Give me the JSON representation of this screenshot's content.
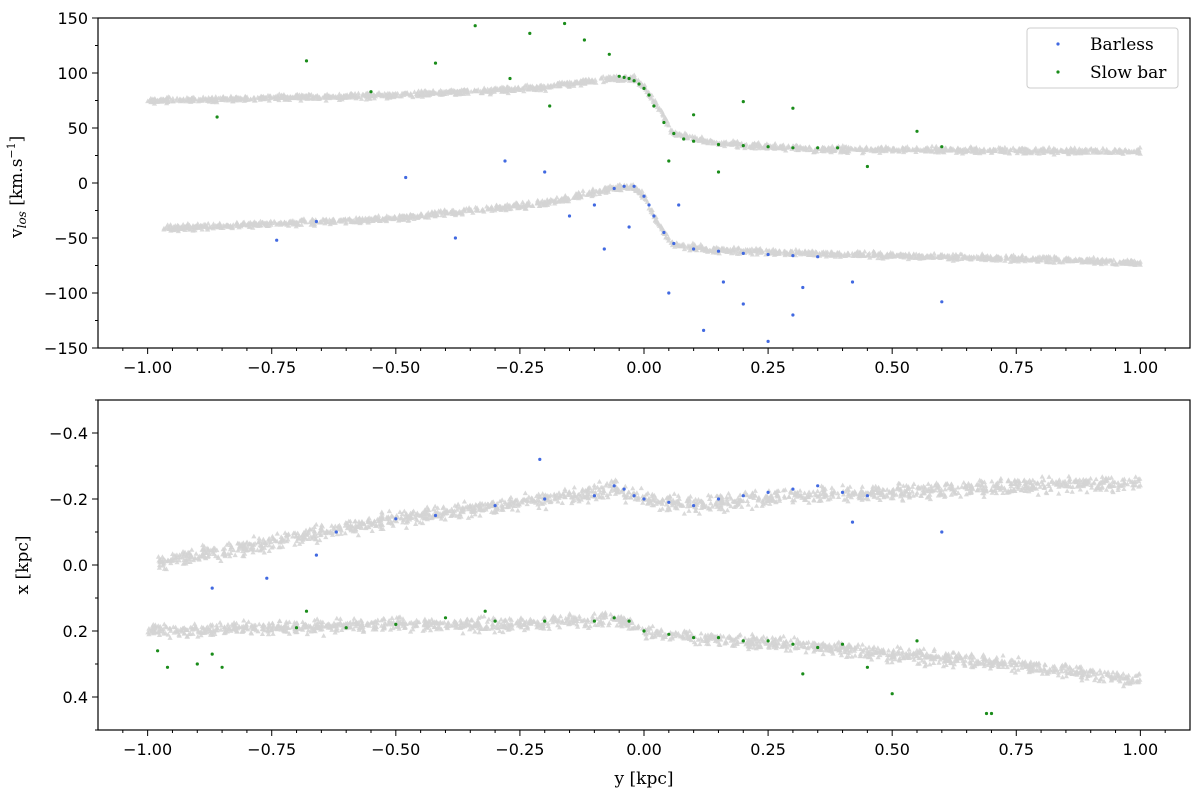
{
  "chart_data": [
    {
      "type": "scatter",
      "panel": "top",
      "xlim": [
        -1.1,
        1.1
      ],
      "ylim": [
        -150,
        150
      ],
      "xticks": [
        -1.0,
        -0.75,
        -0.5,
        -0.25,
        0.0,
        0.25,
        0.5,
        0.75,
        1.0
      ],
      "xtick_labels": [
        "−1.00",
        "−0.75",
        "−0.50",
        "−0.25",
        "0.00",
        "0.25",
        "0.50",
        "0.75",
        "1.00"
      ],
      "yticks": [
        -150,
        -100,
        -50,
        0,
        50,
        100,
        150
      ],
      "ytick_labels": [
        "−150",
        "−100",
        "−50",
        "0",
        "50",
        "100",
        "150"
      ],
      "ylabel": "v",
      "ylabel_sub": "los",
      "ylabel_unit": "[km.s",
      "ylabel_sup": "−1",
      "ylabel_close": "]",
      "legend_position": "top-right",
      "legend": [
        {
          "label": "Barless",
          "color": "#4169e1"
        },
        {
          "label": "Slow bar",
          "color": "#1a8c1a"
        }
      ],
      "series": [
        {
          "name": "Slow bar background (all stars)",
          "color": "#d3d3d3",
          "model": "rotation_curve",
          "points": [
            [
              -1.0,
              75
            ],
            [
              -0.5,
              80
            ],
            [
              -0.2,
              87
            ],
            [
              -0.06,
              96
            ],
            [
              -0.02,
              95
            ],
            [
              0.0,
              88
            ],
            [
              0.03,
              68
            ],
            [
              0.06,
              45
            ],
            [
              0.15,
              36
            ],
            [
              0.35,
              31
            ],
            [
              0.6,
              30
            ],
            [
              1.0,
              29
            ]
          ]
        },
        {
          "name": "Barless background (all stars)",
          "color": "#d3d3d3",
          "model": "rotation_curve",
          "points": [
            [
              -0.97,
              -41
            ],
            [
              -0.5,
              -32
            ],
            [
              -0.2,
              -18
            ],
            [
              -0.06,
              -4
            ],
            [
              -0.02,
              -4
            ],
            [
              0.0,
              -12
            ],
            [
              0.03,
              -38
            ],
            [
              0.06,
              -56
            ],
            [
              0.15,
              -61
            ],
            [
              0.35,
              -64
            ],
            [
              0.7,
              -68
            ],
            [
              1.0,
              -72
            ]
          ]
        },
        {
          "name": "Slow bar",
          "color": "#1a8c1a",
          "points": [
            [
              -0.86,
              60
            ],
            [
              -0.68,
              111
            ],
            [
              -0.55,
              83
            ],
            [
              -0.42,
              109
            ],
            [
              -0.34,
              143
            ],
            [
              -0.23,
              136
            ],
            [
              -0.16,
              145
            ],
            [
              -0.12,
              130
            ],
            [
              -0.07,
              117
            ],
            [
              -0.05,
              97
            ],
            [
              -0.04,
              96
            ],
            [
              -0.03,
              95
            ],
            [
              -0.02,
              93
            ],
            [
              -0.01,
              90
            ],
            [
              0.0,
              86
            ],
            [
              0.01,
              80
            ],
            [
              0.02,
              70
            ],
            [
              0.04,
              55
            ],
            [
              0.06,
              45
            ],
            [
              0.08,
              40
            ],
            [
              0.1,
              38
            ],
            [
              0.15,
              35
            ],
            [
              0.2,
              34
            ],
            [
              0.25,
              33
            ],
            [
              0.3,
              32
            ],
            [
              0.35,
              32
            ],
            [
              0.39,
              32
            ],
            [
              0.45,
              15
            ],
            [
              0.55,
              47
            ],
            [
              0.6,
              33
            ],
            [
              -0.27,
              95
            ],
            [
              -0.19,
              70
            ],
            [
              0.2,
              74
            ],
            [
              0.3,
              68
            ],
            [
              0.1,
              62
            ],
            [
              0.05,
              20
            ],
            [
              0.15,
              10
            ]
          ]
        },
        {
          "name": "Barless",
          "color": "#4169e1",
          "points": [
            [
              -0.74,
              -52
            ],
            [
              -0.66,
              -35
            ],
            [
              -0.48,
              5
            ],
            [
              -0.38,
              -50
            ],
            [
              -0.28,
              20
            ],
            [
              -0.2,
              10
            ],
            [
              -0.15,
              -30
            ],
            [
              -0.1,
              -20
            ],
            [
              -0.06,
              -5
            ],
            [
              -0.04,
              -3
            ],
            [
              -0.02,
              -3
            ],
            [
              0.0,
              -12
            ],
            [
              0.01,
              -20
            ],
            [
              0.02,
              -30
            ],
            [
              0.04,
              -45
            ],
            [
              0.06,
              -55
            ],
            [
              0.1,
              -60
            ],
            [
              0.15,
              -62
            ],
            [
              0.2,
              -64
            ],
            [
              0.25,
              -65
            ],
            [
              0.3,
              -66
            ],
            [
              0.35,
              -67
            ],
            [
              0.12,
              -134
            ],
            [
              0.25,
              -144
            ],
            [
              0.6,
              -108
            ],
            [
              0.42,
              -90
            ],
            [
              -0.08,
              -60
            ],
            [
              0.05,
              -100
            ],
            [
              0.2,
              -110
            ],
            [
              0.3,
              -120
            ],
            [
              0.16,
              -90
            ],
            [
              0.32,
              -95
            ],
            [
              0.07,
              -20
            ],
            [
              -0.03,
              -40
            ]
          ]
        }
      ]
    },
    {
      "type": "scatter",
      "panel": "bottom",
      "xlim": [
        -1.1,
        1.1
      ],
      "ylim": [
        -0.5,
        0.5
      ],
      "y_inverted": true,
      "xticks": [
        -1.0,
        -0.75,
        -0.5,
        -0.25,
        0.0,
        0.25,
        0.5,
        0.75,
        1.0
      ],
      "xtick_labels": [
        "−1.00",
        "−0.75",
        "−0.50",
        "−0.25",
        "0.00",
        "0.25",
        "0.50",
        "0.75",
        "1.00"
      ],
      "yticks": [
        -0.4,
        -0.2,
        0.0,
        0.2,
        0.4
      ],
      "ytick_labels": [
        "−0.4",
        "−0.2",
        "0.0",
        "0.2",
        "0.4"
      ],
      "xlabel": "y [kpc]",
      "ylabel": "x [kpc]",
      "series": [
        {
          "name": "Barless background (all stars)",
          "color": "#d3d3d3",
          "model": "ridge",
          "points": [
            [
              -0.98,
              -0.01
            ],
            [
              -0.75,
              -0.07
            ],
            [
              -0.5,
              -0.14
            ],
            [
              -0.25,
              -0.19
            ],
            [
              -0.06,
              -0.23
            ],
            [
              0.0,
              -0.2
            ],
            [
              0.1,
              -0.18
            ],
            [
              0.3,
              -0.21
            ],
            [
              0.5,
              -0.22
            ],
            [
              0.75,
              -0.24
            ],
            [
              1.0,
              -0.25
            ]
          ]
        },
        {
          "name": "Slow bar background (all stars)",
          "color": "#d3d3d3",
          "model": "ridge",
          "points": [
            [
              -1.0,
              0.2
            ],
            [
              -0.75,
              0.19
            ],
            [
              -0.5,
              0.18
            ],
            [
              -0.25,
              0.18
            ],
            [
              -0.06,
              0.16
            ],
            [
              0.0,
              0.2
            ],
            [
              0.1,
              0.22
            ],
            [
              0.3,
              0.24
            ],
            [
              0.5,
              0.27
            ],
            [
              0.75,
              0.3
            ],
            [
              1.0,
              0.35
            ]
          ]
        },
        {
          "name": "Barless",
          "color": "#4169e1",
          "points": [
            [
              -0.87,
              0.07
            ],
            [
              -0.76,
              0.04
            ],
            [
              -0.66,
              -0.03
            ],
            [
              -0.62,
              -0.1
            ],
            [
              -0.5,
              -0.14
            ],
            [
              -0.42,
              -0.15
            ],
            [
              -0.3,
              -0.18
            ],
            [
              -0.21,
              -0.32
            ],
            [
              -0.2,
              -0.2
            ],
            [
              -0.1,
              -0.21
            ],
            [
              -0.06,
              -0.24
            ],
            [
              -0.04,
              -0.23
            ],
            [
              -0.02,
              -0.21
            ],
            [
              0.0,
              -0.2
            ],
            [
              0.05,
              -0.19
            ],
            [
              0.1,
              -0.18
            ],
            [
              0.15,
              -0.2
            ],
            [
              0.2,
              -0.21
            ],
            [
              0.25,
              -0.22
            ],
            [
              0.3,
              -0.23
            ],
            [
              0.35,
              -0.24
            ],
            [
              0.4,
              -0.22
            ],
            [
              0.45,
              -0.21
            ],
            [
              0.6,
              -0.1
            ],
            [
              0.42,
              -0.13
            ]
          ]
        },
        {
          "name": "Slow bar",
          "color": "#1a8c1a",
          "points": [
            [
              -0.98,
              0.26
            ],
            [
              -0.96,
              0.31
            ],
            [
              -0.9,
              0.3
            ],
            [
              -0.87,
              0.27
            ],
            [
              -0.85,
              0.31
            ],
            [
              -0.7,
              0.19
            ],
            [
              -0.68,
              0.14
            ],
            [
              -0.6,
              0.19
            ],
            [
              -0.5,
              0.18
            ],
            [
              -0.4,
              0.16
            ],
            [
              -0.3,
              0.17
            ],
            [
              -0.2,
              0.17
            ],
            [
              -0.1,
              0.17
            ],
            [
              -0.06,
              0.16
            ],
            [
              -0.03,
              0.17
            ],
            [
              0.0,
              0.2
            ],
            [
              0.05,
              0.21
            ],
            [
              0.1,
              0.22
            ],
            [
              0.15,
              0.22
            ],
            [
              0.2,
              0.23
            ],
            [
              0.25,
              0.23
            ],
            [
              0.3,
              0.24
            ],
            [
              0.35,
              0.25
            ],
            [
              0.4,
              0.24
            ],
            [
              0.45,
              0.31
            ],
            [
              0.5,
              0.39
            ],
            [
              0.55,
              0.23
            ],
            [
              0.69,
              0.45
            ],
            [
              0.7,
              0.45
            ],
            [
              0.32,
              0.33
            ],
            [
              -0.32,
              0.14
            ]
          ]
        }
      ]
    }
  ]
}
